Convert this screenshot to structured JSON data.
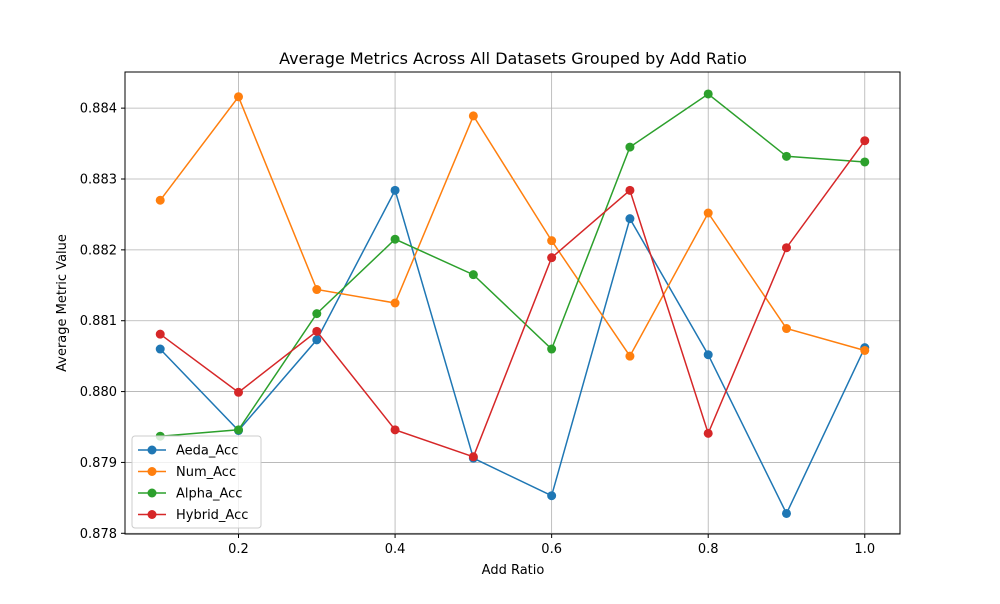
{
  "chart_data": {
    "type": "line",
    "title": "Average Metrics Across All Datasets Grouped by Add Ratio",
    "xlabel": "Add Ratio",
    "ylabel": "Average Metric Value",
    "x": [
      0.1,
      0.2,
      0.3,
      0.4,
      0.5,
      0.6,
      0.7,
      0.8,
      0.9,
      1.0
    ],
    "xlim": [
      0.055,
      1.045
    ],
    "ylim": [
      0.87799,
      0.88451
    ],
    "xticks": [
      0.2,
      0.4,
      0.6,
      0.8,
      1.0
    ],
    "xtick_labels": [
      "0.2",
      "0.4",
      "0.6",
      "0.8",
      "1.0"
    ],
    "yticks": [
      0.878,
      0.879,
      0.88,
      0.881,
      0.882,
      0.883,
      0.884
    ],
    "ytick_labels": [
      "0.878",
      "0.879",
      "0.880",
      "0.881",
      "0.882",
      "0.883",
      "0.884"
    ],
    "grid": true,
    "legend_position": "bottom-left",
    "series": [
      {
        "name": "Aeda_Acc",
        "color": "#1f77b4",
        "values": [
          0.8806,
          0.87945,
          0.88073,
          0.88284,
          0.87906,
          0.87853,
          0.88244,
          0.88052,
          0.87828,
          0.88062
        ]
      },
      {
        "name": "Num_Acc",
        "color": "#ff7f0e",
        "values": [
          0.8827,
          0.88416,
          0.88144,
          0.88125,
          0.88389,
          0.88213,
          0.8805,
          0.88252,
          0.88089,
          0.88058
        ]
      },
      {
        "name": "Alpha_Acc",
        "color": "#2ca02c",
        "values": [
          0.87937,
          0.87946,
          0.8811,
          0.88215,
          0.88165,
          0.8806,
          0.88345,
          0.8842,
          0.88332,
          0.88324
        ]
      },
      {
        "name": "Hybrid_Acc",
        "color": "#d62728",
        "values": [
          0.88081,
          0.87999,
          0.88085,
          0.87946,
          0.87908,
          0.88189,
          0.88284,
          0.87941,
          0.88203,
          0.88354
        ]
      }
    ]
  }
}
